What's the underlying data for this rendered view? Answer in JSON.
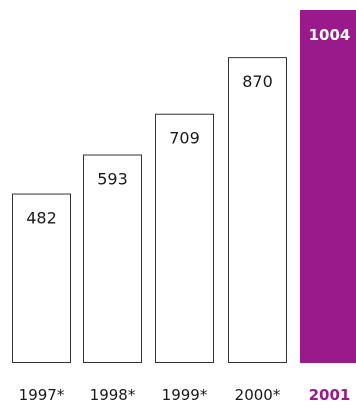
{
  "chart_data": {
    "type": "bar",
    "categories": [
      "1997*",
      "1998*",
      "1999*",
      "2000*",
      "2001"
    ],
    "values": [
      482,
      593,
      709,
      870,
      1004
    ],
    "value_labels": [
      "482",
      "593",
      "709",
      "870",
      "1004"
    ],
    "highlight_index": 4,
    "ylim": [
      0,
      1004
    ],
    "grid": false,
    "legend": "none",
    "title": "",
    "xlabel": "",
    "ylabel": ""
  },
  "colors": {
    "highlight": "#9b1a8b",
    "bar_fill": "#ffffff",
    "bar_stroke": "#333333",
    "text": "#1a1a1a",
    "highlight_text": "#ffffff"
  }
}
